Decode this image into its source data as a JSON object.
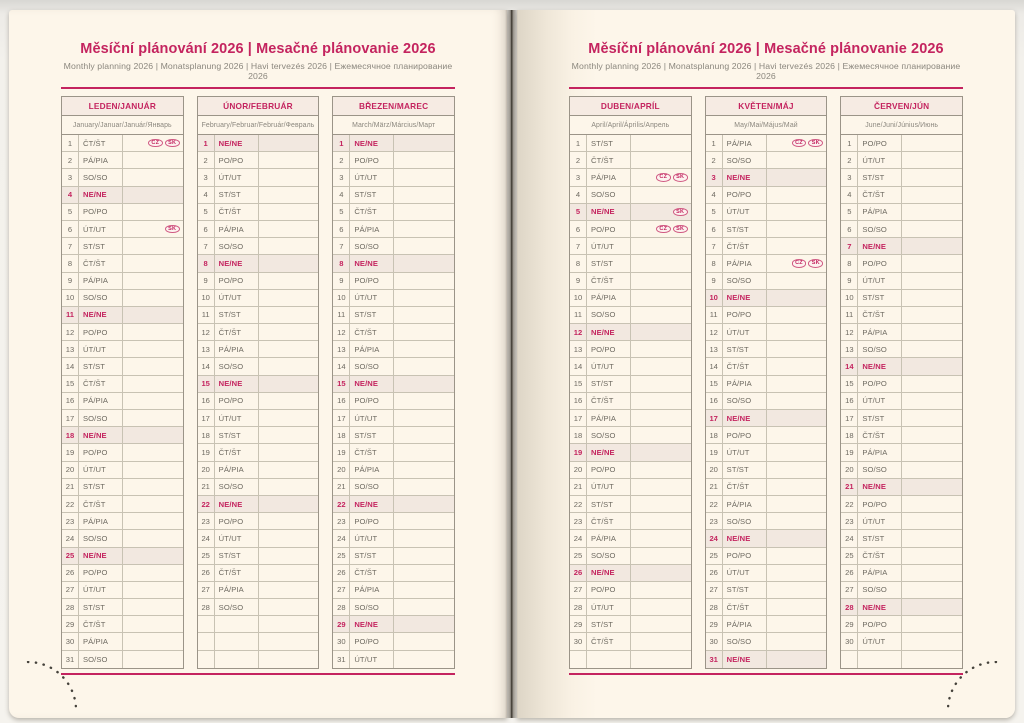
{
  "sunday_label": "NE/NE",
  "colors": {
    "accent_pink": "#c4245f",
    "page_background": "#fdf6ea",
    "month_header_background": "#f6ebe3",
    "sunday_row_background": "#f2e8e0",
    "table_border": "#9b9488",
    "row_border": "#c8c2b3",
    "muted_text": "#6e6a61",
    "subtitle_text": "#8b877e"
  },
  "pages": [
    {
      "title": "Měsíční plánování 2026 | Mesačné plánovanie 2026",
      "subtitle": "Monthly planning 2026 | Monatsplanung 2026 | Havi tervezés 2026 | Ежемесячное планирование 2026",
      "months": [
        {
          "header": "LEDEN/JANUÁR",
          "subheader": "January/Januar/Január/Январь",
          "rows": [
            [
              1,
              "ČT/ŠT",
              [
                "CZ",
                "SK"
              ]
            ],
            [
              2,
              "PÁ/PIA"
            ],
            [
              3,
              "SO/SO"
            ],
            [
              4,
              "NE/NE"
            ],
            [
              5,
              "PO/PO"
            ],
            [
              6,
              "ÚT/UT",
              [
                "SK"
              ]
            ],
            [
              7,
              "ST/ST"
            ],
            [
              8,
              "ČT/ŠT"
            ],
            [
              9,
              "PÁ/PIA"
            ],
            [
              10,
              "SO/SO"
            ],
            [
              11,
              "NE/NE"
            ],
            [
              12,
              "PO/PO"
            ],
            [
              13,
              "ÚT/UT"
            ],
            [
              14,
              "ST/ST"
            ],
            [
              15,
              "ČT/ŠT"
            ],
            [
              16,
              "PÁ/PIA"
            ],
            [
              17,
              "SO/SO"
            ],
            [
              18,
              "NE/NE"
            ],
            [
              19,
              "PO/PO"
            ],
            [
              20,
              "ÚT/UT"
            ],
            [
              21,
              "ST/ST"
            ],
            [
              22,
              "ČT/ŠT"
            ],
            [
              23,
              "PÁ/PIA"
            ],
            [
              24,
              "SO/SO"
            ],
            [
              25,
              "NE/NE"
            ],
            [
              26,
              "PO/PO"
            ],
            [
              27,
              "ÚT/UT"
            ],
            [
              28,
              "ST/ST"
            ],
            [
              29,
              "ČT/ŠT"
            ],
            [
              30,
              "PÁ/PIA"
            ],
            [
              31,
              "SO/SO"
            ]
          ]
        },
        {
          "header": "ÚNOR/FEBRUÁR",
          "subheader": "February/Februar/Február/Февраль",
          "rows": [
            [
              1,
              "NE/NE"
            ],
            [
              2,
              "PO/PO"
            ],
            [
              3,
              "ÚT/UT"
            ],
            [
              4,
              "ST/ST"
            ],
            [
              5,
              "ČT/ŠT"
            ],
            [
              6,
              "PÁ/PIA"
            ],
            [
              7,
              "SO/SO"
            ],
            [
              8,
              "NE/NE"
            ],
            [
              9,
              "PO/PO"
            ],
            [
              10,
              "ÚT/UT"
            ],
            [
              11,
              "ST/ST"
            ],
            [
              12,
              "ČT/ŠT"
            ],
            [
              13,
              "PÁ/PIA"
            ],
            [
              14,
              "SO/SO"
            ],
            [
              15,
              "NE/NE"
            ],
            [
              16,
              "PO/PO"
            ],
            [
              17,
              "ÚT/UT"
            ],
            [
              18,
              "ST/ST"
            ],
            [
              19,
              "ČT/ŠT"
            ],
            [
              20,
              "PÁ/PIA"
            ],
            [
              21,
              "SO/SO"
            ],
            [
              22,
              "NE/NE"
            ],
            [
              23,
              "PO/PO"
            ],
            [
              24,
              "ÚT/UT"
            ],
            [
              25,
              "ST/ST"
            ],
            [
              26,
              "ČT/ŠT"
            ],
            [
              27,
              "PÁ/PIA"
            ],
            [
              28,
              "SO/SO"
            ],
            [
              "",
              ""
            ],
            [
              "",
              ""
            ],
            [
              "",
              ""
            ]
          ]
        },
        {
          "header": "BŘEZEN/MAREC",
          "subheader": "March/März/Március/Март",
          "rows": [
            [
              1,
              "NE/NE"
            ],
            [
              2,
              "PO/PO"
            ],
            [
              3,
              "ÚT/UT"
            ],
            [
              4,
              "ST/ST"
            ],
            [
              5,
              "ČT/ŠT"
            ],
            [
              6,
              "PÁ/PIA"
            ],
            [
              7,
              "SO/SO"
            ],
            [
              8,
              "NE/NE"
            ],
            [
              9,
              "PO/PO"
            ],
            [
              10,
              "ÚT/UT"
            ],
            [
              11,
              "ST/ST"
            ],
            [
              12,
              "ČT/ŠT"
            ],
            [
              13,
              "PÁ/PIA"
            ],
            [
              14,
              "SO/SO"
            ],
            [
              15,
              "NE/NE"
            ],
            [
              16,
              "PO/PO"
            ],
            [
              17,
              "ÚT/UT"
            ],
            [
              18,
              "ST/ST"
            ],
            [
              19,
              "ČT/ŠT"
            ],
            [
              20,
              "PÁ/PIA"
            ],
            [
              21,
              "SO/SO"
            ],
            [
              22,
              "NE/NE"
            ],
            [
              23,
              "PO/PO"
            ],
            [
              24,
              "ÚT/UT"
            ],
            [
              25,
              "ST/ST"
            ],
            [
              26,
              "ČT/ŠT"
            ],
            [
              27,
              "PÁ/PIA"
            ],
            [
              28,
              "SO/SO"
            ],
            [
              29,
              "NE/NE"
            ],
            [
              30,
              "PO/PO"
            ],
            [
              31,
              "ÚT/UT"
            ]
          ]
        }
      ]
    },
    {
      "title": "Měsíční plánování 2026 | Mesačné plánovanie 2026",
      "subtitle": "Monthly planning 2026 | Monatsplanung 2026 | Havi tervezés 2026 | Ежемесячное планирование 2026",
      "months": [
        {
          "header": "DUBEN/APRÍL",
          "subheader": "April/April/Április/Апрель",
          "rows": [
            [
              1,
              "ST/ST"
            ],
            [
              2,
              "ČT/ŠT"
            ],
            [
              3,
              "PÁ/PIA",
              [
                "CZ",
                "SK"
              ]
            ],
            [
              4,
              "SO/SO"
            ],
            [
              5,
              "NE/NE",
              [
                "SK"
              ]
            ],
            [
              6,
              "PO/PO",
              [
                "CZ",
                "SK"
              ]
            ],
            [
              7,
              "ÚT/UT"
            ],
            [
              8,
              "ST/ST"
            ],
            [
              9,
              "ČT/ŠT"
            ],
            [
              10,
              "PÁ/PIA"
            ],
            [
              11,
              "SO/SO"
            ],
            [
              12,
              "NE/NE"
            ],
            [
              13,
              "PO/PO"
            ],
            [
              14,
              "ÚT/UT"
            ],
            [
              15,
              "ST/ST"
            ],
            [
              16,
              "ČT/ŠT"
            ],
            [
              17,
              "PÁ/PIA"
            ],
            [
              18,
              "SO/SO"
            ],
            [
              19,
              "NE/NE"
            ],
            [
              20,
              "PO/PO"
            ],
            [
              21,
              "ÚT/UT"
            ],
            [
              22,
              "ST/ST"
            ],
            [
              23,
              "ČT/ŠT"
            ],
            [
              24,
              "PÁ/PIA"
            ],
            [
              25,
              "SO/SO"
            ],
            [
              26,
              "NE/NE"
            ],
            [
              27,
              "PO/PO"
            ],
            [
              28,
              "ÚT/UT"
            ],
            [
              29,
              "ST/ST"
            ],
            [
              30,
              "ČT/ŠT"
            ],
            [
              "",
              ""
            ]
          ]
        },
        {
          "header": "KVĚTEN/MÁJ",
          "subheader": "May/Mai/Május/Май",
          "rows": [
            [
              1,
              "PÁ/PIA",
              [
                "CZ",
                "SK"
              ]
            ],
            [
              2,
              "SO/SO"
            ],
            [
              3,
              "NE/NE"
            ],
            [
              4,
              "PO/PO"
            ],
            [
              5,
              "ÚT/UT"
            ],
            [
              6,
              "ST/ST"
            ],
            [
              7,
              "ČT/ŠT"
            ],
            [
              8,
              "PÁ/PIA",
              [
                "CZ",
                "SK"
              ]
            ],
            [
              9,
              "SO/SO"
            ],
            [
              10,
              "NE/NE"
            ],
            [
              11,
              "PO/PO"
            ],
            [
              12,
              "ÚT/UT"
            ],
            [
              13,
              "ST/ST"
            ],
            [
              14,
              "ČT/ŠT"
            ],
            [
              15,
              "PÁ/PIA"
            ],
            [
              16,
              "SO/SO"
            ],
            [
              17,
              "NE/NE"
            ],
            [
              18,
              "PO/PO"
            ],
            [
              19,
              "ÚT/UT"
            ],
            [
              20,
              "ST/ST"
            ],
            [
              21,
              "ČT/ŠT"
            ],
            [
              22,
              "PÁ/PIA"
            ],
            [
              23,
              "SO/SO"
            ],
            [
              24,
              "NE/NE"
            ],
            [
              25,
              "PO/PO"
            ],
            [
              26,
              "ÚT/UT"
            ],
            [
              27,
              "ST/ST"
            ],
            [
              28,
              "ČT/ŠT"
            ],
            [
              29,
              "PÁ/PIA"
            ],
            [
              30,
              "SO/SO"
            ],
            [
              31,
              "NE/NE"
            ]
          ]
        },
        {
          "header": "ČERVEN/JÚN",
          "subheader": "June/Juni/Június/Июнь",
          "rows": [
            [
              1,
              "PO/PO"
            ],
            [
              2,
              "ÚT/UT"
            ],
            [
              3,
              "ST/ST"
            ],
            [
              4,
              "ČT/ŠT"
            ],
            [
              5,
              "PÁ/PIA"
            ],
            [
              6,
              "SO/SO"
            ],
            [
              7,
              "NE/NE"
            ],
            [
              8,
              "PO/PO"
            ],
            [
              9,
              "ÚT/UT"
            ],
            [
              10,
              "ST/ST"
            ],
            [
              11,
              "ČT/ŠT"
            ],
            [
              12,
              "PÁ/PIA"
            ],
            [
              13,
              "SO/SO"
            ],
            [
              14,
              "NE/NE"
            ],
            [
              15,
              "PO/PO"
            ],
            [
              16,
              "ÚT/UT"
            ],
            [
              17,
              "ST/ST"
            ],
            [
              18,
              "ČT/ŠT"
            ],
            [
              19,
              "PÁ/PIA"
            ],
            [
              20,
              "SO/SO"
            ],
            [
              21,
              "NE/NE"
            ],
            [
              22,
              "PO/PO"
            ],
            [
              23,
              "ÚT/UT"
            ],
            [
              24,
              "ST/ST"
            ],
            [
              25,
              "ČT/ŠT"
            ],
            [
              26,
              "PÁ/PIA"
            ],
            [
              27,
              "SO/SO"
            ],
            [
              28,
              "NE/NE"
            ],
            [
              29,
              "PO/PO"
            ],
            [
              30,
              "ÚT/UT"
            ],
            [
              "",
              ""
            ]
          ]
        }
      ]
    }
  ]
}
